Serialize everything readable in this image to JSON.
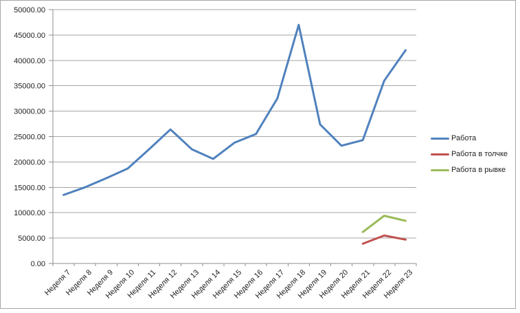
{
  "chart": {
    "background": "#ffffff",
    "border_color": "#a6a6a6",
    "gridline_color": "#a6a6a6",
    "axis_color": "#8c8c8c",
    "text_color": "#1f1f1f"
  },
  "chart_data": {
    "type": "line",
    "title": "",
    "xlabel": "",
    "ylabel": "",
    "categories": [
      "Неделя 7",
      "Неделя 8",
      "Неделя 9",
      "Неделя 10",
      "Неделя 11",
      "Неделя 12",
      "Неделя 13",
      "Неделя 14",
      "Неделя 15",
      "Неделя 16",
      "Неделя 17",
      "Неделя 18",
      "Неделя 19",
      "Неделя 20",
      "Неделя 21",
      "Неделя 22",
      "Неделя 23"
    ],
    "series": [
      {
        "name": "Работа",
        "color": "#4f81bd",
        "values": [
          13500,
          15000,
          16800,
          18700,
          22500,
          26400,
          22500,
          20600,
          23800,
          25500,
          32500,
          47000,
          27400,
          23200,
          24300,
          36000,
          42000
        ]
      },
      {
        "name": "Работа в толчке",
        "color": "#c0504d",
        "values": [
          null,
          null,
          null,
          null,
          null,
          null,
          null,
          null,
          null,
          null,
          null,
          null,
          null,
          null,
          3900,
          5500,
          4700
        ]
      },
      {
        "name": "Работа в рывке",
        "color": "#9bbb59",
        "values": [
          null,
          null,
          null,
          null,
          null,
          null,
          null,
          null,
          null,
          null,
          null,
          null,
          null,
          null,
          6200,
          9400,
          8400
        ]
      }
    ],
    "ylim": [
      0,
      50000
    ],
    "ytick_step": 5000,
    "ytick_labels": [
      "0.00",
      "5000.00",
      "10000.00",
      "15000.00",
      "20000.00",
      "25000.00",
      "30000.00",
      "35000.00",
      "40000.00",
      "45000.00",
      "50000.00"
    ],
    "grid": true,
    "legend_position": "right",
    "x_labels_rotation_deg": -45
  }
}
